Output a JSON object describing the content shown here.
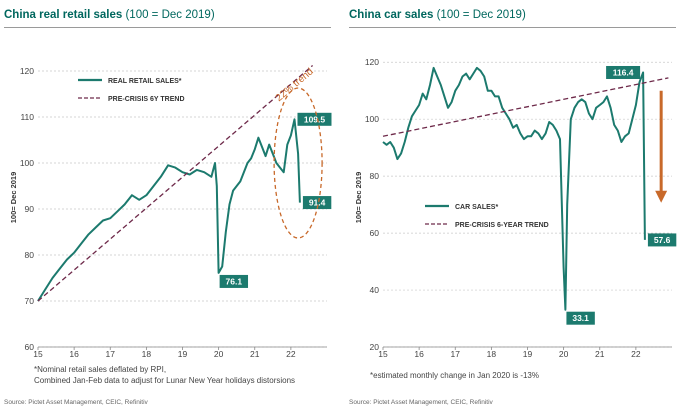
{
  "chart_data": [
    {
      "type": "line",
      "title": "China real retail sales",
      "subtitle": "(100 = Dec 2019)",
      "ylabel": "100= Dec 2019",
      "xlabel": "",
      "ylim": [
        60,
        125
      ],
      "xlim": [
        15,
        23
      ],
      "yticks": [
        60,
        70,
        80,
        90,
        100,
        110,
        120
      ],
      "xticks": [
        "15",
        "16",
        "17",
        "18",
        "19",
        "20",
        "21",
        "22"
      ],
      "grid": "horizontal dashed",
      "legend": [
        {
          "label": "REAL RETAIL SALES*",
          "style": "solid",
          "color": "#1c7a6e"
        },
        {
          "label": "PRE-CRISIS 6Y TREND",
          "style": "dashed",
          "color": "#6e2a4a"
        }
      ],
      "series": [
        {
          "name": "REAL RETAIL SALES*",
          "x": [
            15.0,
            15.2,
            15.4,
            15.6,
            15.8,
            16.0,
            16.2,
            16.4,
            16.6,
            16.8,
            17.0,
            17.2,
            17.4,
            17.6,
            17.8,
            18.0,
            18.2,
            18.4,
            18.6,
            18.8,
            19.0,
            19.2,
            19.4,
            19.6,
            19.8,
            19.9,
            19.95,
            20.0,
            20.1,
            20.2,
            20.3,
            20.4,
            20.6,
            20.8,
            20.9,
            21.0,
            21.1,
            21.2,
            21.3,
            21.4,
            21.5,
            21.6,
            21.7,
            21.8,
            21.9,
            22.0,
            22.1,
            22.2,
            22.25
          ],
          "values": [
            70.0,
            72.5,
            75.0,
            77.0,
            79.0,
            80.5,
            82.5,
            84.5,
            86.0,
            87.5,
            88.0,
            89.5,
            91.0,
            93.0,
            92.0,
            93.0,
            95.0,
            97.0,
            99.5,
            99.0,
            98.0,
            97.5,
            98.5,
            98.0,
            97.0,
            100.0,
            95.0,
            76.1,
            77.5,
            85.0,
            91.0,
            94.0,
            96.0,
            100.0,
            101.0,
            103.0,
            105.5,
            103.5,
            101.5,
            104.0,
            102.0,
            100.0,
            99.0,
            98.0,
            104.0,
            106.0,
            109.5,
            102.0,
            91.4
          ]
        },
        {
          "name": "PRE-CRISIS 6Y TREND",
          "x": [
            15.0,
            22.6
          ],
          "values": [
            70.0,
            121.2
          ]
        }
      ],
      "data_labels": [
        {
          "text": "109.5",
          "x": 22.1,
          "y": 109.5
        },
        {
          "text": "91.4",
          "x": 22.25,
          "y": 91.4
        },
        {
          "text": "76.1",
          "x": 20.0,
          "y": 76.1
        }
      ],
      "annotations": [
        {
          "text": "22% trend",
          "color": "#c8692a",
          "x": 22.15,
          "y": 116.5
        },
        {
          "shape": "dashed-ellipse",
          "color": "#c8692a",
          "x": 22.2,
          "y": 100
        }
      ]
    },
    {
      "type": "line",
      "title": "China car sales",
      "subtitle": "(100 = Dec 2019)",
      "ylabel": "100= Dec 2019",
      "xlabel": "",
      "ylim": [
        20,
        125
      ],
      "xlim": [
        15,
        23
      ],
      "yticks": [
        20,
        40,
        60,
        80,
        100,
        120
      ],
      "xticks": [
        "15",
        "16",
        "17",
        "18",
        "19",
        "20",
        "21",
        "22"
      ],
      "grid": "horizontal dashed",
      "legend": [
        {
          "label": "CAR SALES*",
          "style": "solid",
          "color": "#1c7a6e"
        },
        {
          "label": "PRE-CRISIS 6-YEAR TREND",
          "style": "dashed",
          "color": "#6e2a4a"
        }
      ],
      "series": [
        {
          "name": "CAR SALES*",
          "x": [
            15.0,
            15.1,
            15.2,
            15.3,
            15.4,
            15.5,
            15.6,
            15.7,
            15.8,
            15.9,
            16.0,
            16.1,
            16.2,
            16.3,
            16.4,
            16.5,
            16.6,
            16.7,
            16.8,
            16.9,
            17.0,
            17.1,
            17.2,
            17.3,
            17.4,
            17.5,
            17.6,
            17.7,
            17.8,
            17.9,
            18.0,
            18.1,
            18.2,
            18.3,
            18.4,
            18.5,
            18.6,
            18.7,
            18.8,
            18.9,
            19.0,
            19.1,
            19.2,
            19.3,
            19.4,
            19.5,
            19.6,
            19.7,
            19.8,
            19.9,
            20.0,
            20.05,
            20.1,
            20.2,
            20.3,
            20.4,
            20.5,
            20.6,
            20.7,
            20.8,
            20.9,
            21.0,
            21.1,
            21.2,
            21.3,
            21.4,
            21.5,
            21.6,
            21.7,
            21.8,
            21.9,
            22.0,
            22.1,
            22.2,
            22.25
          ],
          "values": [
            92,
            91,
            92,
            90,
            86,
            88,
            92,
            97,
            101,
            103,
            105,
            109,
            107,
            112,
            118,
            115,
            112,
            108,
            104,
            106,
            110,
            112,
            115,
            116,
            114,
            116,
            118,
            117,
            115,
            110,
            110,
            108,
            108,
            104,
            102,
            100,
            97,
            98,
            95,
            93,
            94,
            94,
            96,
            95,
            93,
            95,
            99,
            98,
            96,
            93,
            48,
            33.1,
            70,
            100,
            104,
            106,
            107,
            106,
            102,
            100,
            104,
            105,
            106,
            108,
            104,
            98,
            96,
            92,
            94,
            95,
            100,
            105,
            113,
            116.4,
            57.6
          ]
        },
        {
          "name": "PRE-CRISIS 6-YEAR TREND",
          "x": [
            15.0,
            22.9
          ],
          "values": [
            94.0,
            114.5
          ]
        }
      ],
      "data_labels": [
        {
          "text": "116.4",
          "x": 22.2,
          "y": 116.4
        },
        {
          "text": "57.6",
          "x": 22.25,
          "y": 57.6
        },
        {
          "text": "33.1",
          "x": 20.05,
          "y": 33.1
        }
      ],
      "annotations": [
        {
          "shape": "down-arrow",
          "color": "#c8692a",
          "x": 22.7,
          "y": 110
        }
      ]
    }
  ],
  "notes": {
    "left_line1": "*Nominal retail sales deflated by RPI,",
    "left_line2": "Combined Jan-Feb data to adjust for Lunar New Year holidays distorsions",
    "right_line1": "*estimated monthly change in Jan 2020 is -13%",
    "source_left": "Source: Pictet Asset Management, CEIC, Refinitiv",
    "source_right": "Source: Pictet Asset Management, CEIC, Refinitiv"
  },
  "colors": {
    "series": "#1c7a6e",
    "trend": "#6e2a4a",
    "accent": "#c8692a",
    "grid": "#c9c9c9",
    "label_bg": "#1c7a6e"
  }
}
